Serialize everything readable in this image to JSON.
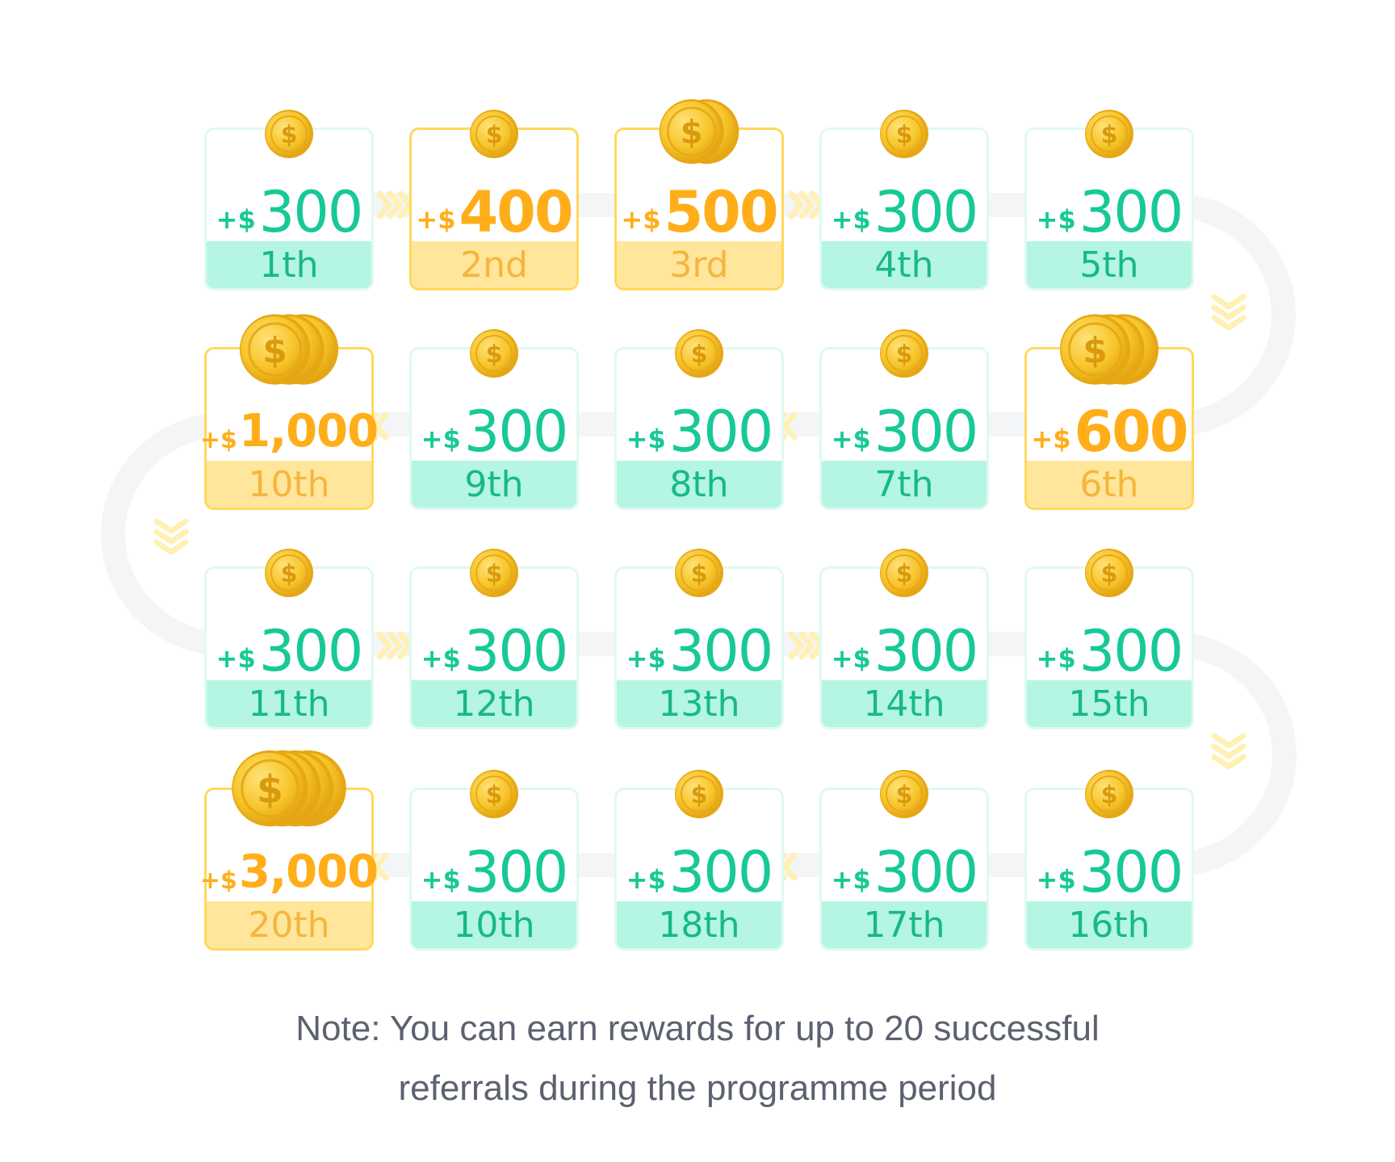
{
  "colors": {
    "green": "#17c996",
    "green_light": "#b4f5e3",
    "gold": "#ffae1a",
    "gold_light": "#ffe69a",
    "track": "#f4f5f7",
    "chevron": "#fff0b3"
  },
  "icons": [
    "coin-icon",
    "chevron-icon"
  ],
  "rewards": [
    {
      "prefix": "+$",
      "amount": "300",
      "rank": "1th",
      "tier": "green",
      "coins": 1
    },
    {
      "prefix": "+$",
      "amount": "400",
      "rank": "2nd",
      "tier": "gold",
      "coins": 1
    },
    {
      "prefix": "+$",
      "amount": "500",
      "rank": "3rd",
      "tier": "gold",
      "coins": 2
    },
    {
      "prefix": "+$",
      "amount": "300",
      "rank": "4th",
      "tier": "green",
      "coins": 1
    },
    {
      "prefix": "+$",
      "amount": "300",
      "rank": "5th",
      "tier": "green",
      "coins": 1
    },
    {
      "prefix": "+$",
      "amount": "600",
      "rank": "6th",
      "tier": "gold",
      "coins": 3
    },
    {
      "prefix": "+$",
      "amount": "300",
      "rank": "7th",
      "tier": "green",
      "coins": 1
    },
    {
      "prefix": "+$",
      "amount": "300",
      "rank": "8th",
      "tier": "green",
      "coins": 1
    },
    {
      "prefix": "+$",
      "amount": "300",
      "rank": "9th",
      "tier": "green",
      "coins": 1
    },
    {
      "prefix": "+$",
      "amount": "1,000",
      "rank": "10th",
      "tier": "gold",
      "coins": 3
    },
    {
      "prefix": "+$",
      "amount": "300",
      "rank": "11th",
      "tier": "green",
      "coins": 1
    },
    {
      "prefix": "+$",
      "amount": "300",
      "rank": "12th",
      "tier": "green",
      "coins": 1
    },
    {
      "prefix": "+$",
      "amount": "300",
      "rank": "13th",
      "tier": "green",
      "coins": 1
    },
    {
      "prefix": "+$",
      "amount": "300",
      "rank": "14th",
      "tier": "green",
      "coins": 1
    },
    {
      "prefix": "+$",
      "amount": "300",
      "rank": "15th",
      "tier": "green",
      "coins": 1
    },
    {
      "prefix": "+$",
      "amount": "300",
      "rank": "16th",
      "tier": "green",
      "coins": 1
    },
    {
      "prefix": "+$",
      "amount": "300",
      "rank": "17th",
      "tier": "green",
      "coins": 1
    },
    {
      "prefix": "+$",
      "amount": "300",
      "rank": "18th",
      "tier": "green",
      "coins": 1
    },
    {
      "prefix": "+$",
      "amount": "300",
      "rank": "10th",
      "tier": "green",
      "coins": 1
    },
    {
      "prefix": "+$",
      "amount": "3,000",
      "rank": "20th",
      "tier": "gold",
      "coins": 4
    }
  ],
  "note": {
    "line1": "Note: You can earn rewards for up to 20 successful",
    "line2": "referrals during the programme period"
  }
}
